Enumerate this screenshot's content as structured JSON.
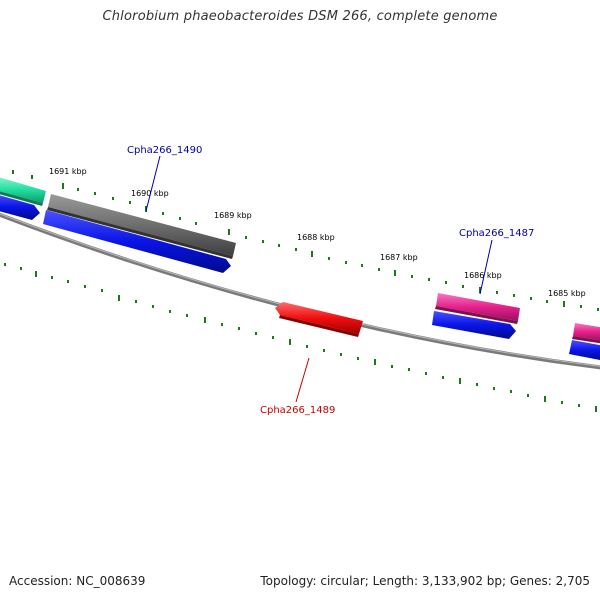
{
  "title": "Chlorobium phaeobacteroides DSM 266, complete genome",
  "footer": {
    "accession": "Accession: NC_008639",
    "summary": "Topology: circular; Length: 3,133,902 bp; Genes: 2,705"
  },
  "colors": {
    "backbone": "#7a7a7a",
    "tick": "#1a7a1a",
    "cds_blue": "#0a14e6",
    "gene_gray": "#6e6e6e",
    "gene_teal": "#22e0a0",
    "gene_magenta": "#e6208c",
    "gene_red": "#f01010",
    "label_blue": "#0000aa",
    "label_red": "#cc0000"
  },
  "ruler_labels": [
    "1691 kbp",
    "1690 kbp",
    "1689 kbp",
    "1688 kbp",
    "1687 kbp",
    "1686 kbp",
    "1685 kbp"
  ],
  "gene_labels": [
    {
      "text": "Cpha266_1490",
      "color": "blue"
    },
    {
      "text": "Cpha266_1487",
      "color": "blue"
    },
    {
      "text": "Cpha266_1489",
      "color": "red"
    }
  ]
}
